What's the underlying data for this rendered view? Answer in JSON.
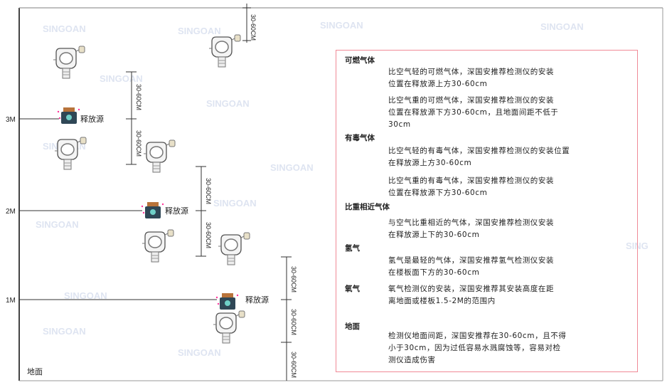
{
  "levels": {
    "m3": "3M",
    "m2": "2M",
    "m1": "1M",
    "ground": "地面"
  },
  "source_label": "释放源",
  "dimension_label": "30-60CM",
  "watermark": "SINGOAN 深国安",
  "colors": {
    "border": "#f08a96",
    "line": "#333333",
    "source_body": "#2f4756",
    "source_cap": "#b8733a"
  },
  "notes": {
    "combustible": {
      "title": "可燃气体",
      "lighter": "比空气轻的可燃气体，深国安推荐检测仪的安装\n位置在释放源上方30-60cm",
      "heavier": "比空气重的可燃气体，深国安推荐检测仪的安装\n位置在释放源下方30-60cm，且地面间距不低于\n30cm"
    },
    "toxic": {
      "title": "有毒气体",
      "lighter": "比空气轻的有毒气体，深国安推荐检测仪的安装位置\n在释放源上方30-60cm",
      "heavier": "比空气重的有毒气体，深国安推荐检测仪的安装\n位置在释放源下方30-60cm"
    },
    "similar": {
      "title": "比重相近气体",
      "text": "与空气比重相近的气体，深国安推荐检测仪安装\n在释放源上下的30-60cm"
    },
    "hydrogen": {
      "title": "氢气",
      "text": "氢气是最轻的气体，深国安推荐氢气检测仪安装\n在楼板面下方的30-60cm"
    },
    "oxygen": {
      "title": "氧气",
      "text": "氧气检测仪的安装，深国安推荐其安装高度在距\n离地面或楼板1.5-2M的范围内"
    },
    "ground": {
      "title": "地面",
      "text": "检测仪地面间距，深国安推荐在30-60cm，且不得\n小于30cm，因为过低容易水溅腐蚀等，容易对检\n测仪造成伤害"
    }
  }
}
